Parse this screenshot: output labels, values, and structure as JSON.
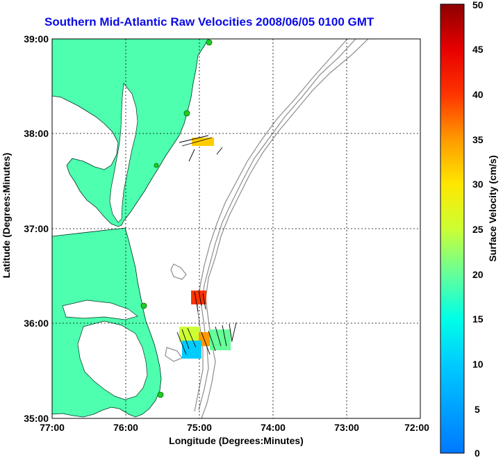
{
  "title": "Southern Mid-Atlantic Raw Velocities 2008/06/05 0100 GMT",
  "axes": {
    "xlabel": "Longitude (Degrees:Minutes)",
    "ylabel": "Latitude (Degrees:Minutes)",
    "x_ticks": [
      "77:00",
      "76:00",
      "75:00",
      "74:00",
      "73:00",
      "72:00"
    ],
    "y_ticks": [
      "39:00",
      "38:00",
      "37:00",
      "36:00",
      "35:00"
    ]
  },
  "colorbar": {
    "label": "Surface Velocity (cm/s)",
    "ticks": [
      "50",
      "45",
      "40",
      "35",
      "30",
      "25",
      "20",
      "15",
      "10",
      "5",
      "0"
    ]
  },
  "colors": {
    "land": "#4dffae",
    "title": "#0a0ae6",
    "bathymetry": "#8c8c8c",
    "station": "#22cc22"
  }
}
